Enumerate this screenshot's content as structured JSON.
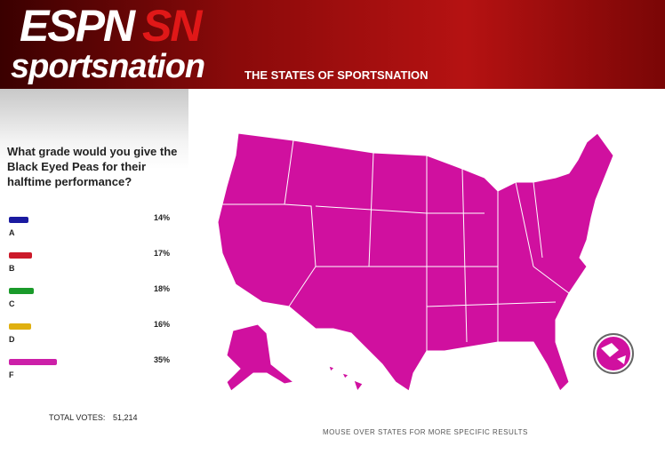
{
  "header": {
    "logo_top": "ESPN",
    "logo_accent": "SN",
    "logo_bottom": "sportsnation",
    "subtitle": "THE STATES OF SPORTSNATION"
  },
  "poll": {
    "question": "What grade would you give the Black Eyed Peas for their halftime performance?",
    "options": [
      {
        "name": "A",
        "value": 14,
        "label": "14%",
        "color": "#1a1aa0"
      },
      {
        "name": "B",
        "value": 17,
        "label": "17%",
        "color": "#cc1a2a"
      },
      {
        "name": "C",
        "value": 18,
        "label": "18%",
        "color": "#1a9a2a"
      },
      {
        "name": "D",
        "value": 16,
        "label": "16%",
        "color": "#e0b010"
      },
      {
        "name": "F",
        "value": 35,
        "label": "35%",
        "color": "#cc20a8"
      }
    ],
    "total_label": "TOTAL VOTES:",
    "total_value": "51,214"
  },
  "map": {
    "footer": "MOUSE OVER STATES FOR MORE SPECIFIC RESULTS"
  }
}
